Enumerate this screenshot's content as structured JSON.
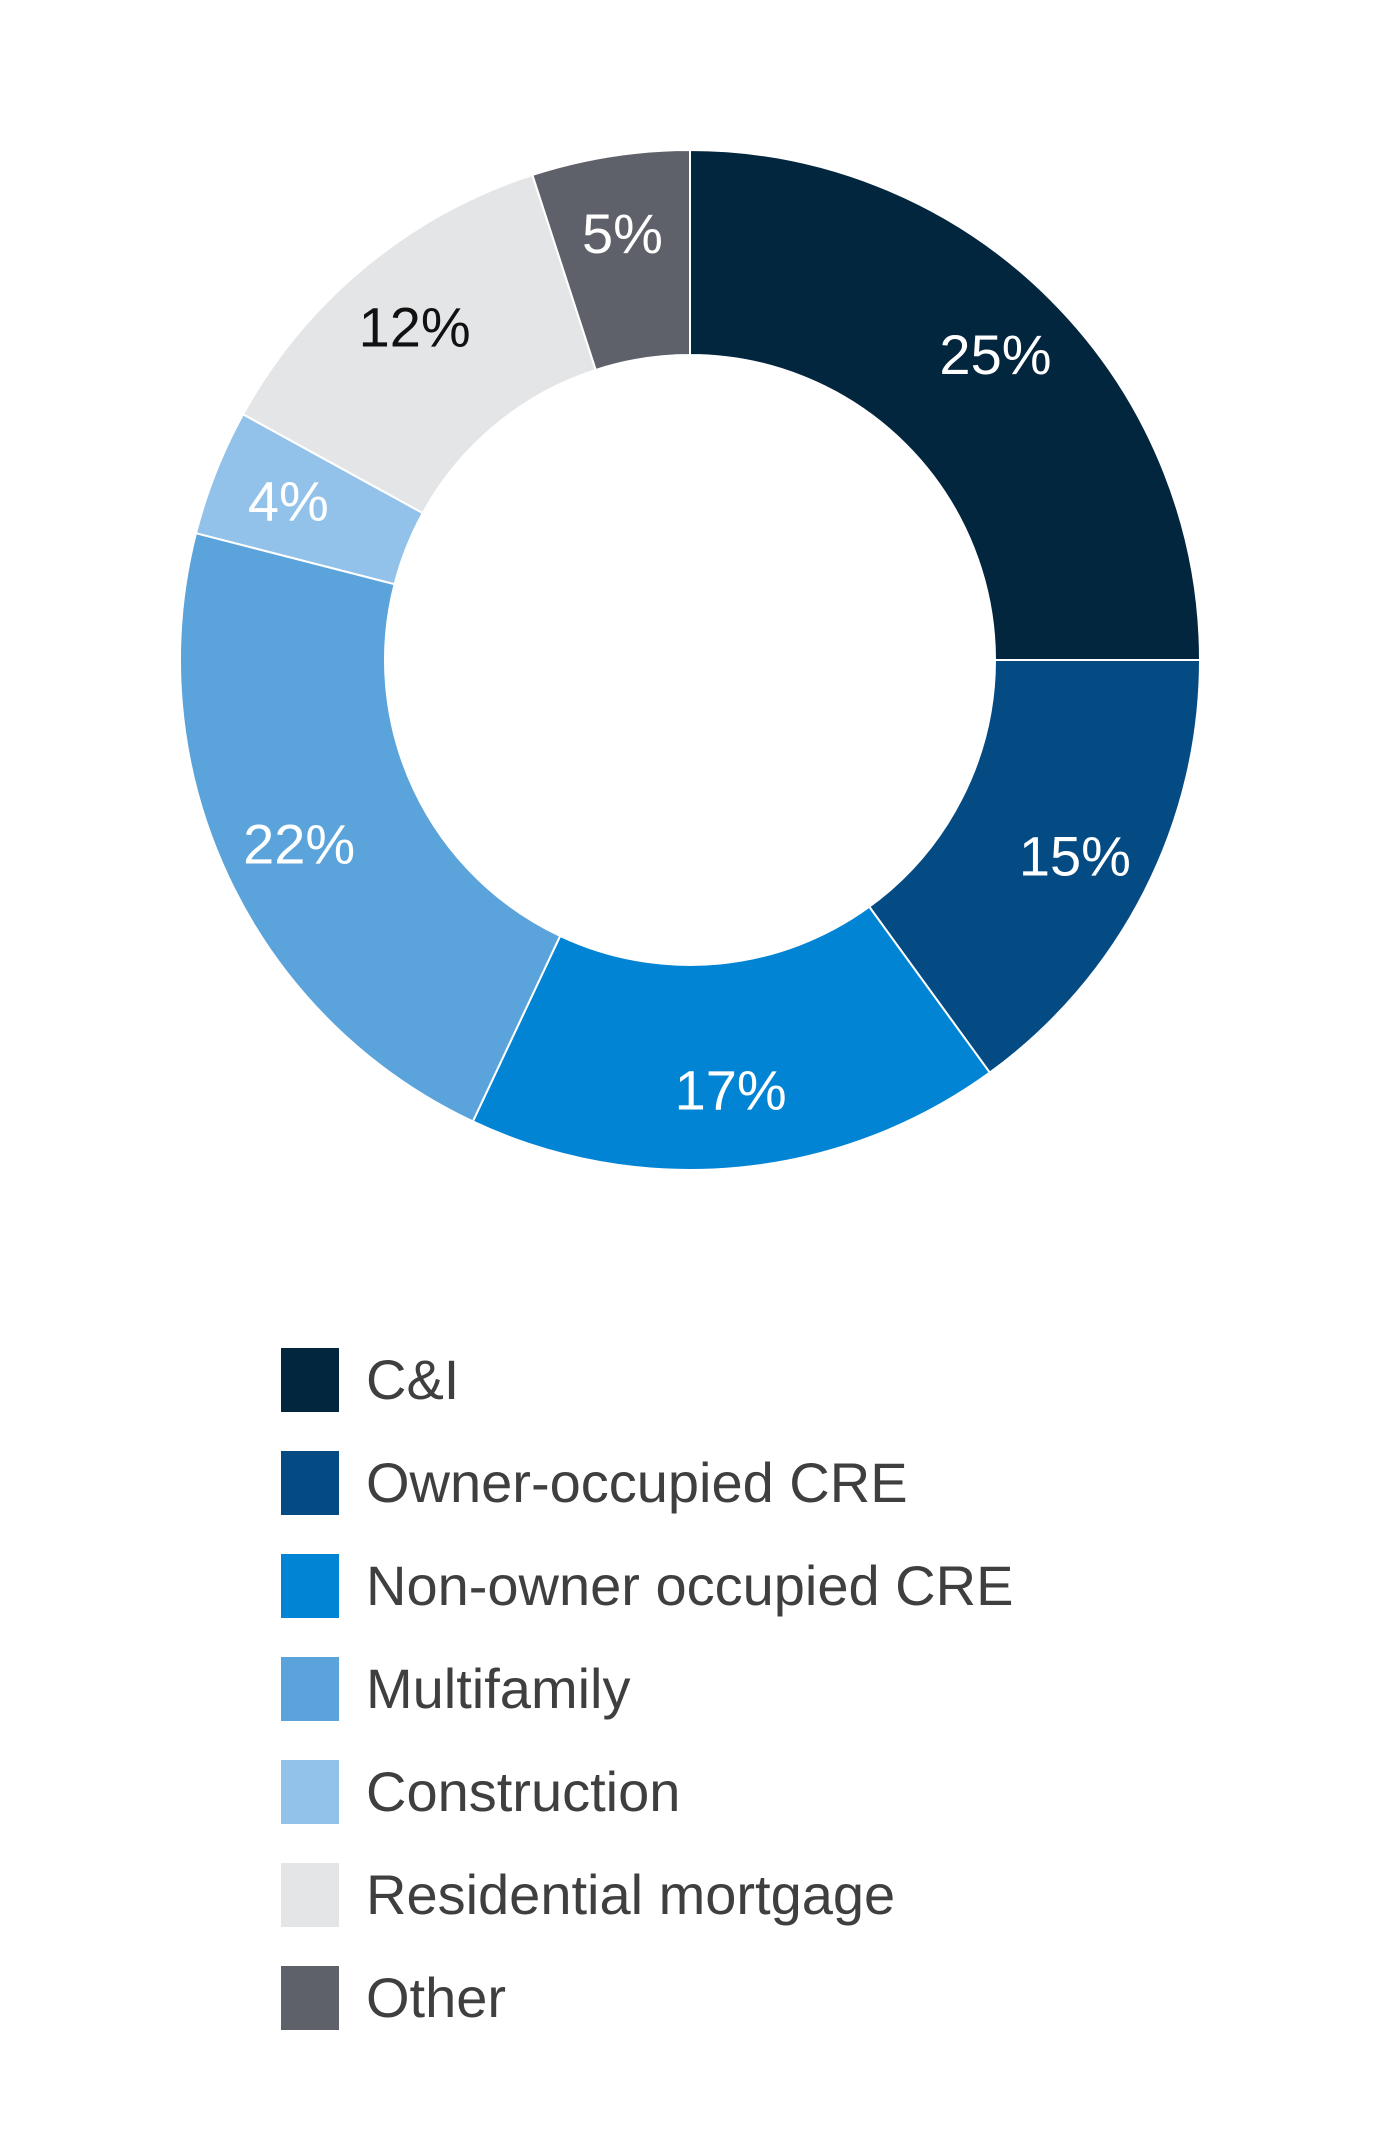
{
  "chart_data": {
    "type": "pie",
    "donut": true,
    "categories": [
      "C&I",
      "Owner-occupied CRE",
      "Non-owner occupied CRE",
      "Multifamily",
      "Construction",
      "Residential mortgage",
      "Other"
    ],
    "values": [
      25,
      15,
      17,
      22,
      4,
      12,
      5
    ],
    "data_labels": [
      "25%",
      "15%",
      "17%",
      "22%",
      "4%",
      "12%",
      "5%"
    ],
    "colors": [
      "#03263f",
      "#044b84",
      "#0284d4",
      "#5ba3db",
      "#92c2ea",
      "#e4e5e7",
      "#5e6169"
    ],
    "label_colors": [
      "#ffffff",
      "#ffffff",
      "#ffffff",
      "#ffffff",
      "#ffffff",
      "#111111",
      "#ffffff"
    ],
    "legend_position": "bottom",
    "title": "",
    "xlabel": "",
    "ylabel": ""
  }
}
